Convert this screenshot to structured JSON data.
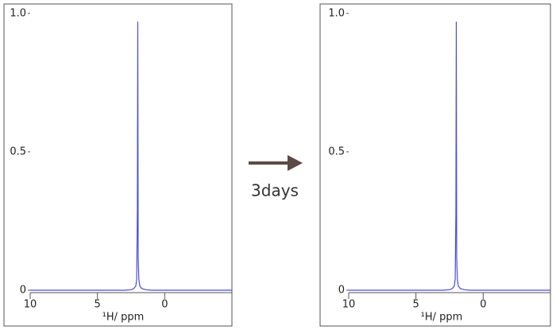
{
  "chart_data": [
    {
      "type": "line",
      "x_label": "¹H/ ppm",
      "x": [
        10,
        3,
        2.5,
        2.3,
        2.15,
        2.08,
        2.03,
        2.0,
        1.97,
        1.92,
        1.85,
        1.7,
        1.4,
        1,
        -5
      ],
      "series": [
        {
          "color": "#4b4bdc",
          "values": [
            0,
            0,
            0.002,
            0.006,
            0.015,
            0.04,
            0.29,
            0.97,
            0.12,
            0.04,
            0.015,
            0.006,
            0.002,
            0,
            0
          ]
        }
      ],
      "xlim": [
        10,
        -5
      ],
      "ylim": [
        0,
        1.034
      ],
      "xticks": [
        10,
        5,
        0
      ],
      "yticks": [
        0,
        0.5,
        {
          "value": 1,
          "label": "1.0"
        }
      ]
    },
    {
      "type": "line",
      "x_label": "¹H/ ppm",
      "x": [
        10,
        3,
        2.5,
        2.3,
        2.15,
        2.08,
        2.03,
        2.0,
        1.97,
        1.92,
        1.85,
        1.7,
        1.4,
        1,
        -5
      ],
      "series": [
        {
          "color": "#4b4bdc",
          "values": [
            0,
            0,
            0.002,
            0.006,
            0.015,
            0.04,
            0.28,
            0.97,
            0.12,
            0.04,
            0.015,
            0.006,
            0.002,
            0,
            0
          ]
        }
      ],
      "xlim": [
        10,
        -5
      ],
      "ylim": [
        0,
        1.034
      ],
      "xticks": [
        10,
        5,
        0
      ],
      "yticks": [
        0,
        0.5,
        {
          "value": 1,
          "label": "1.0"
        }
      ]
    }
  ],
  "arrow_label": "3days"
}
